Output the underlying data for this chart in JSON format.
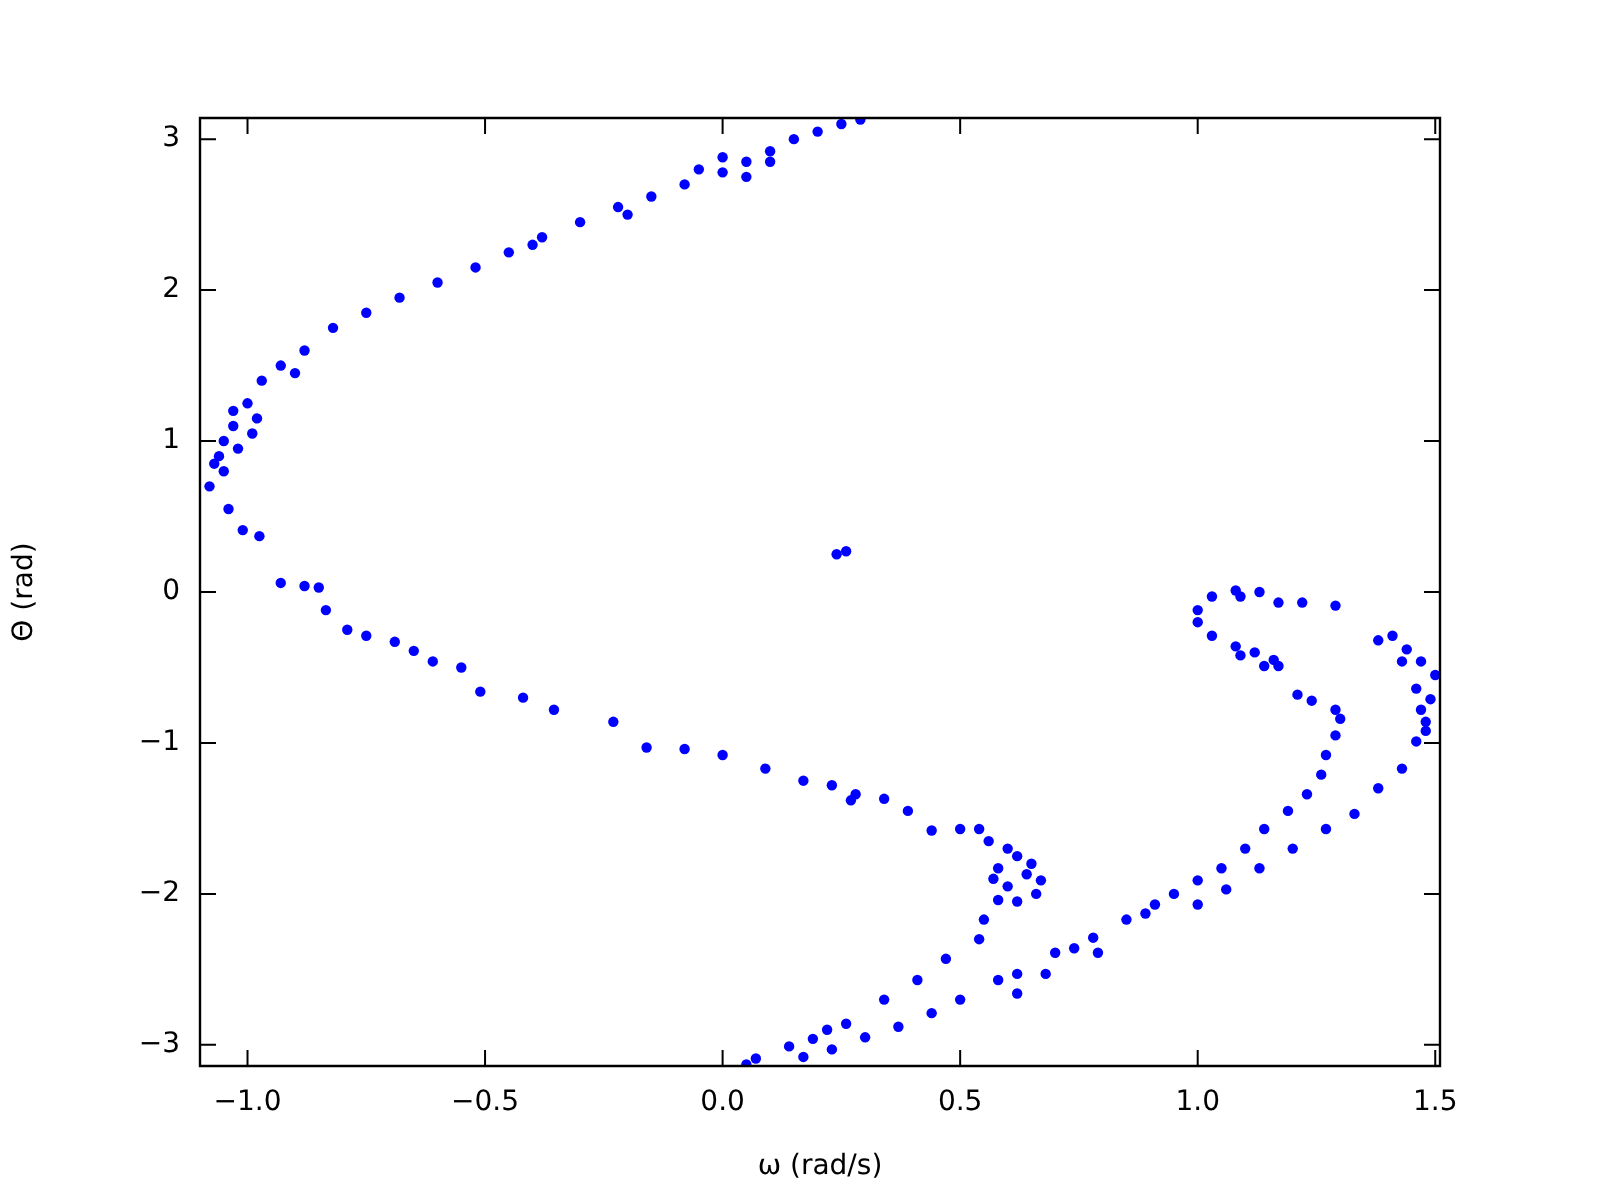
{
  "chart_data": {
    "type": "scatter",
    "xlabel": "ω (rad/s)",
    "ylabel": "Θ (rad)",
    "marker": "circle",
    "xlim": [
      -1.1,
      1.51
    ],
    "ylim": [
      -3.14,
      3.14
    ],
    "xticks": [
      {
        "value": -1,
        "label": "−1.0"
      },
      {
        "value": -0.5,
        "label": "−0.5"
      },
      {
        "value": 0,
        "label": "0.0"
      },
      {
        "value": 0.5,
        "label": "0.5"
      },
      {
        "value": 1,
        "label": "1.0"
      },
      {
        "value": 1.5,
        "label": "1.5"
      }
    ],
    "yticks": [
      {
        "value": -3,
        "label": "−3"
      },
      {
        "value": -2,
        "label": "−2"
      },
      {
        "value": -1,
        "label": "−1"
      },
      {
        "value": 0,
        "label": "0"
      },
      {
        "value": 1,
        "label": "1"
      },
      {
        "value": 2,
        "label": "2"
      },
      {
        "value": 3,
        "label": "3"
      }
    ],
    "series": [
      {
        "color": "#0000ff",
        "x": [
          -1.08,
          -1.07,
          -1.05,
          -1.03,
          -1.0,
          -0.97,
          -0.93,
          -0.88,
          -0.82,
          -0.75,
          -0.68,
          -0.6,
          -0.52,
          -0.45,
          -0.38,
          -0.3,
          -0.22,
          -0.15,
          -0.08,
          0.0,
          0.05,
          0.1,
          0.15,
          0.2,
          0.25,
          0.29,
          -1.05,
          -1.02,
          -0.98,
          -1.04,
          -1.01,
          -0.975,
          -0.9,
          -0.4,
          -0.2,
          0.05,
          0.1,
          0.0,
          -0.05,
          -1.06,
          -1.03,
          -0.99,
          0.24,
          0.26,
          -0.93,
          -0.88,
          -0.85,
          -0.835,
          -0.79,
          -0.75,
          -0.69,
          -0.65,
          -0.61,
          -0.55,
          -0.51,
          -0.42,
          -0.355,
          -0.23,
          -0.16,
          -0.08,
          0.0,
          0.09,
          0.17,
          0.23,
          0.27,
          0.28,
          0.34,
          0.39,
          0.44,
          0.5,
          0.54,
          0.58,
          0.64,
          0.67,
          0.58,
          0.55,
          0.56,
          0.6,
          0.62,
          0.65,
          0.66,
          0.62,
          0.6,
          0.57,
          0.54,
          0.47,
          0.41,
          0.34,
          0.26,
          0.19,
          0.22,
          0.14,
          0.07,
          0.05,
          0.5,
          0.44,
          0.37,
          0.3,
          0.23,
          0.17,
          0.58,
          0.62,
          0.68,
          0.7,
          0.74,
          0.78,
          0.85,
          0.91,
          0.95,
          1.0,
          1.05,
          1.1,
          1.14,
          1.19,
          1.23,
          1.26,
          1.27,
          1.29,
          1.3,
          1.29,
          1.24,
          1.21,
          0.79,
          0.89,
          1.0,
          1.06,
          1.13,
          1.2,
          1.27,
          1.33,
          1.38,
          1.43,
          1.46,
          1.48,
          0.62,
          1.0,
          1.0,
          1.03,
          1.08,
          1.12,
          1.16,
          1.17,
          1.03,
          1.08,
          1.09,
          1.13,
          1.17,
          1.22,
          1.29,
          1.14,
          1.09,
          1.38,
          1.41,
          1.44,
          1.47,
          1.5,
          1.46,
          1.47,
          1.49,
          1.43,
          1.48
        ],
        "values": [
          0.7,
          0.85,
          1.0,
          1.1,
          1.25,
          1.4,
          1.5,
          1.6,
          1.75,
          1.85,
          1.95,
          2.05,
          2.15,
          2.25,
          2.35,
          2.45,
          2.55,
          2.62,
          2.7,
          2.78,
          2.85,
          2.92,
          3.0,
          3.05,
          3.1,
          3.13,
          0.8,
          0.95,
          1.15,
          0.55,
          0.41,
          0.37,
          1.45,
          2.3,
          2.5,
          2.75,
          2.85,
          2.88,
          2.8,
          0.9,
          1.2,
          1.05,
          0.25,
          0.27,
          0.06,
          0.04,
          0.03,
          -0.12,
          -0.25,
          -0.29,
          -0.33,
          -0.39,
          -0.46,
          -0.5,
          -0.66,
          -0.7,
          -0.78,
          -0.86,
          -1.03,
          -1.04,
          -1.08,
          -1.17,
          -1.25,
          -1.28,
          -1.38,
          -1.34,
          -1.37,
          -1.45,
          -1.58,
          -1.57,
          -1.57,
          -1.83,
          -1.87,
          -1.91,
          -2.04,
          -2.17,
          -1.65,
          -1.7,
          -1.75,
          -1.8,
          -2.0,
          -2.05,
          -1.95,
          -1.9,
          -2.3,
          -2.43,
          -2.57,
          -2.7,
          -2.86,
          -2.96,
          -2.9,
          -3.01,
          -3.09,
          -3.13,
          -2.7,
          -2.79,
          -2.88,
          -2.95,
          -3.03,
          -3.08,
          -2.57,
          -2.53,
          -2.53,
          -2.39,
          -2.36,
          -2.29,
          -2.17,
          -2.07,
          -2.0,
          -1.91,
          -1.83,
          -1.7,
          -1.57,
          -1.45,
          -1.34,
          -1.21,
          -1.08,
          -0.95,
          -0.84,
          -0.78,
          -0.72,
          -0.68,
          -2.39,
          -2.13,
          -2.07,
          -1.97,
          -1.83,
          -1.7,
          -1.57,
          -1.47,
          -1.3,
          -1.17,
          -0.99,
          -0.86,
          -2.66,
          -0.12,
          -0.2,
          -0.29,
          -0.36,
          -0.4,
          -0.45,
          -0.49,
          -0.03,
          0.01,
          -0.03,
          0.0,
          -0.07,
          -0.07,
          -0.09,
          -0.49,
          -0.42,
          -0.32,
          -0.29,
          -0.38,
          -0.46,
          -0.55,
          -0.64,
          -0.78,
          -0.71,
          -0.46,
          -0.92
        ]
      }
    ]
  }
}
